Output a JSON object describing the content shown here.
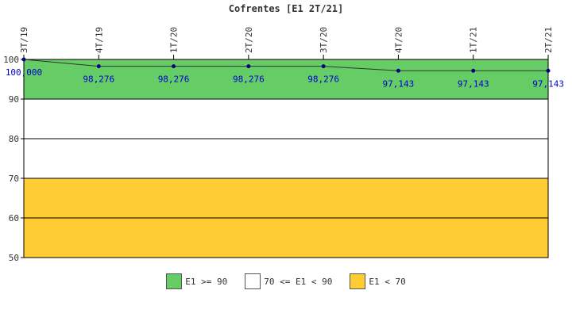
{
  "chart_data": {
    "type": "line",
    "title": "Cofrentes [E1 2T/21]",
    "categories": [
      "3T/19",
      "4T/19",
      "1T/20",
      "2T/20",
      "3T/20",
      "4T/20",
      "1T/21",
      "2T/21"
    ],
    "series": [
      {
        "values": [
          100.0,
          98.276,
          98.276,
          98.276,
          98.276,
          97.143,
          97.143,
          97.143
        ],
        "labels": [
          "100,000",
          "98,276",
          "98,276",
          "98,276",
          "98,276",
          "97,143",
          "97,143",
          "97,143"
        ],
        "color": "#000080"
      }
    ],
    "ylim": [
      50,
      100
    ],
    "yticks": [
      50,
      60,
      70,
      80,
      90,
      100
    ],
    "bands": [
      {
        "from": 90,
        "to": 100,
        "color": "#66cc66",
        "label": "E1 >= 90"
      },
      {
        "from": 70,
        "to": 90,
        "color": "#ffffff",
        "label": "70 <= E1 < 90"
      },
      {
        "from": 50,
        "to": 70,
        "color": "#ffcc33",
        "label": "E1 < 70"
      }
    ],
    "legend_position": "bottom"
  }
}
